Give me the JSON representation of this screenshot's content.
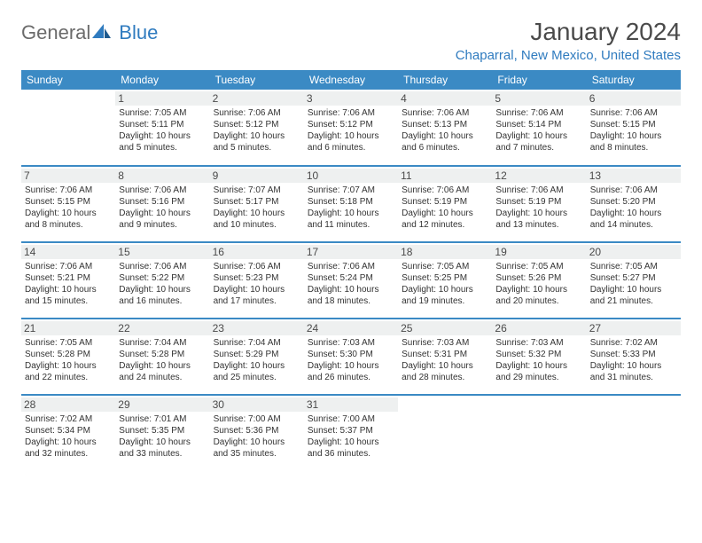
{
  "logo": {
    "text1": "General",
    "text2": "Blue"
  },
  "title": "January 2024",
  "location": "Chaparral, New Mexico, United States",
  "colors": {
    "header_bg": "#3b8ac4",
    "header_fg": "#ffffff",
    "row_border": "#3b8ac4",
    "daynum_bg": "#eef0f0",
    "accent": "#2f7bbf",
    "text": "#333333"
  },
  "dayHeaders": [
    "Sunday",
    "Monday",
    "Tuesday",
    "Wednesday",
    "Thursday",
    "Friday",
    "Saturday"
  ],
  "weeks": [
    [
      null,
      {
        "n": "1",
        "sr": "7:05 AM",
        "ss": "5:11 PM",
        "dl": "10 hours and 5 minutes."
      },
      {
        "n": "2",
        "sr": "7:06 AM",
        "ss": "5:12 PM",
        "dl": "10 hours and 5 minutes."
      },
      {
        "n": "3",
        "sr": "7:06 AM",
        "ss": "5:12 PM",
        "dl": "10 hours and 6 minutes."
      },
      {
        "n": "4",
        "sr": "7:06 AM",
        "ss": "5:13 PM",
        "dl": "10 hours and 6 minutes."
      },
      {
        "n": "5",
        "sr": "7:06 AM",
        "ss": "5:14 PM",
        "dl": "10 hours and 7 minutes."
      },
      {
        "n": "6",
        "sr": "7:06 AM",
        "ss": "5:15 PM",
        "dl": "10 hours and 8 minutes."
      }
    ],
    [
      {
        "n": "7",
        "sr": "7:06 AM",
        "ss": "5:15 PM",
        "dl": "10 hours and 8 minutes."
      },
      {
        "n": "8",
        "sr": "7:06 AM",
        "ss": "5:16 PM",
        "dl": "10 hours and 9 minutes."
      },
      {
        "n": "9",
        "sr": "7:07 AM",
        "ss": "5:17 PM",
        "dl": "10 hours and 10 minutes."
      },
      {
        "n": "10",
        "sr": "7:07 AM",
        "ss": "5:18 PM",
        "dl": "10 hours and 11 minutes."
      },
      {
        "n": "11",
        "sr": "7:06 AM",
        "ss": "5:19 PM",
        "dl": "10 hours and 12 minutes."
      },
      {
        "n": "12",
        "sr": "7:06 AM",
        "ss": "5:19 PM",
        "dl": "10 hours and 13 minutes."
      },
      {
        "n": "13",
        "sr": "7:06 AM",
        "ss": "5:20 PM",
        "dl": "10 hours and 14 minutes."
      }
    ],
    [
      {
        "n": "14",
        "sr": "7:06 AM",
        "ss": "5:21 PM",
        "dl": "10 hours and 15 minutes."
      },
      {
        "n": "15",
        "sr": "7:06 AM",
        "ss": "5:22 PM",
        "dl": "10 hours and 16 minutes."
      },
      {
        "n": "16",
        "sr": "7:06 AM",
        "ss": "5:23 PM",
        "dl": "10 hours and 17 minutes."
      },
      {
        "n": "17",
        "sr": "7:06 AM",
        "ss": "5:24 PM",
        "dl": "10 hours and 18 minutes."
      },
      {
        "n": "18",
        "sr": "7:05 AM",
        "ss": "5:25 PM",
        "dl": "10 hours and 19 minutes."
      },
      {
        "n": "19",
        "sr": "7:05 AM",
        "ss": "5:26 PM",
        "dl": "10 hours and 20 minutes."
      },
      {
        "n": "20",
        "sr": "7:05 AM",
        "ss": "5:27 PM",
        "dl": "10 hours and 21 minutes."
      }
    ],
    [
      {
        "n": "21",
        "sr": "7:05 AM",
        "ss": "5:28 PM",
        "dl": "10 hours and 22 minutes."
      },
      {
        "n": "22",
        "sr": "7:04 AM",
        "ss": "5:28 PM",
        "dl": "10 hours and 24 minutes."
      },
      {
        "n": "23",
        "sr": "7:04 AM",
        "ss": "5:29 PM",
        "dl": "10 hours and 25 minutes."
      },
      {
        "n": "24",
        "sr": "7:03 AM",
        "ss": "5:30 PM",
        "dl": "10 hours and 26 minutes."
      },
      {
        "n": "25",
        "sr": "7:03 AM",
        "ss": "5:31 PM",
        "dl": "10 hours and 28 minutes."
      },
      {
        "n": "26",
        "sr": "7:03 AM",
        "ss": "5:32 PM",
        "dl": "10 hours and 29 minutes."
      },
      {
        "n": "27",
        "sr": "7:02 AM",
        "ss": "5:33 PM",
        "dl": "10 hours and 31 minutes."
      }
    ],
    [
      {
        "n": "28",
        "sr": "7:02 AM",
        "ss": "5:34 PM",
        "dl": "10 hours and 32 minutes."
      },
      {
        "n": "29",
        "sr": "7:01 AM",
        "ss": "5:35 PM",
        "dl": "10 hours and 33 minutes."
      },
      {
        "n": "30",
        "sr": "7:00 AM",
        "ss": "5:36 PM",
        "dl": "10 hours and 35 minutes."
      },
      {
        "n": "31",
        "sr": "7:00 AM",
        "ss": "5:37 PM",
        "dl": "10 hours and 36 minutes."
      },
      null,
      null,
      null
    ]
  ],
  "labels": {
    "sunrise": "Sunrise:",
    "sunset": "Sunset:",
    "daylight": "Daylight:"
  }
}
